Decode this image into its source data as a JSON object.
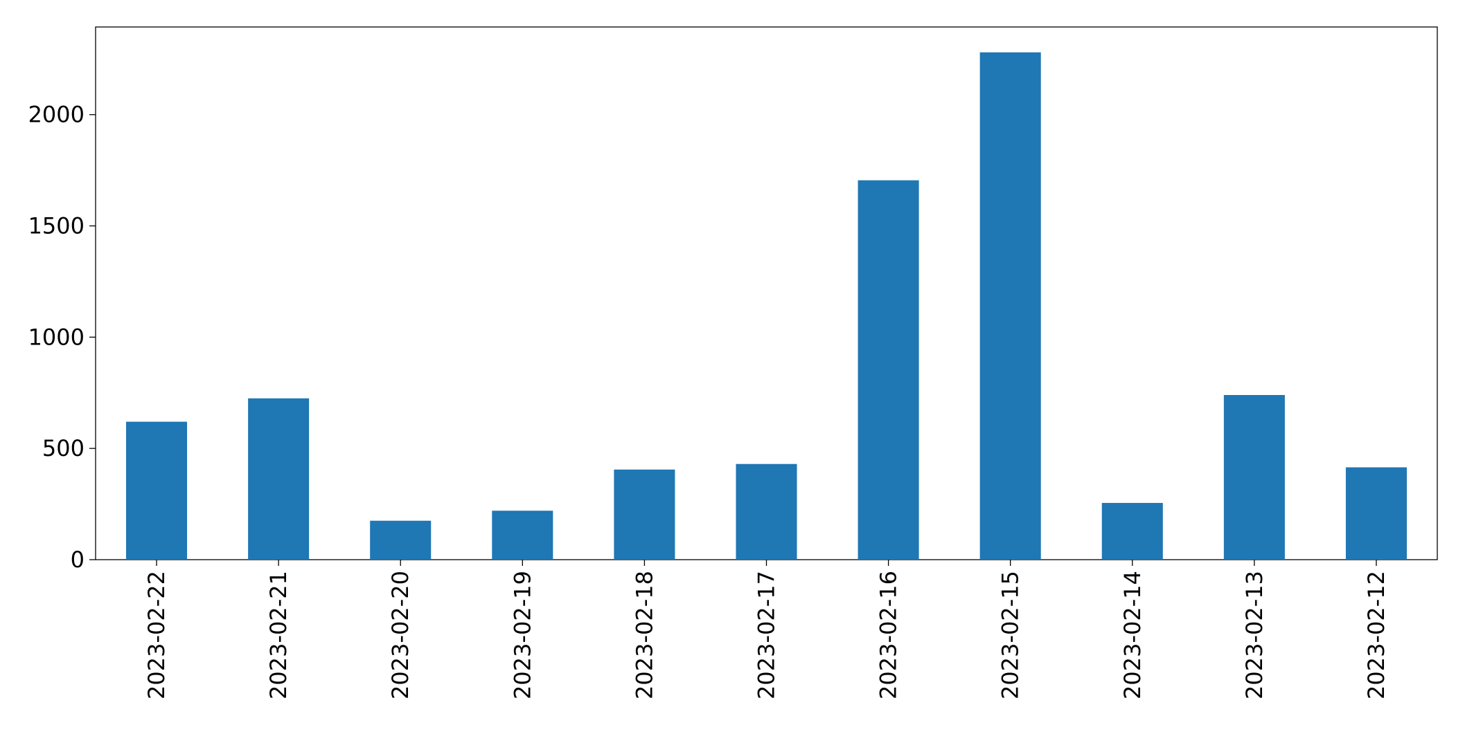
{
  "chart_data": {
    "type": "bar",
    "categories": [
      "2023-02-22",
      "2023-02-21",
      "2023-02-20",
      "2023-02-19",
      "2023-02-18",
      "2023-02-17",
      "2023-02-16",
      "2023-02-15",
      "2023-02-14",
      "2023-02-13",
      "2023-02-12"
    ],
    "values": [
      620,
      725,
      175,
      220,
      405,
      430,
      1705,
      2280,
      255,
      740,
      415
    ],
    "color": "#1f77b4",
    "ylim": [
      0,
      2394
    ],
    "yticks": [
      0,
      500,
      1000,
      1500,
      2000
    ],
    "grid": false
  }
}
